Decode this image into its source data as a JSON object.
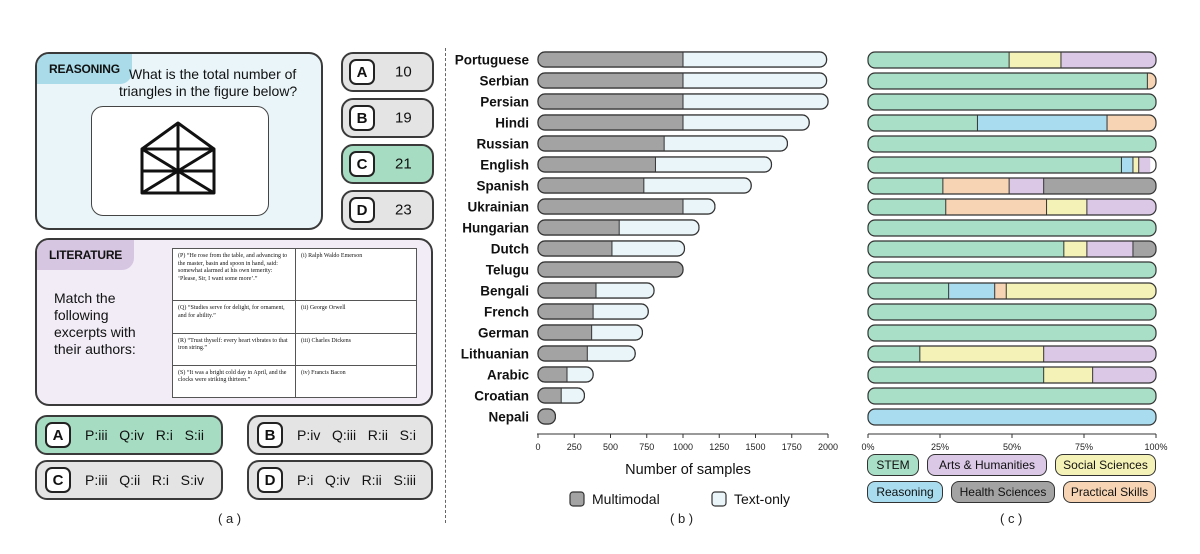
{
  "panel_a": {
    "label": "( a )",
    "reasoning": {
      "tag": "REASONING",
      "question_line1": "What is the total number of",
      "question_line2": "triangles  in the figure below?",
      "figure_icon": "house-triangles-figure",
      "options": [
        {
          "key": "A",
          "value": "10",
          "correct": false
        },
        {
          "key": "B",
          "value": "19",
          "correct": false
        },
        {
          "key": "C",
          "value": "21",
          "correct": true
        },
        {
          "key": "D",
          "value": "23",
          "correct": false
        }
      ]
    },
    "literature": {
      "tag": "LITERATURE",
      "prompt_lines": [
        "Match the",
        "following",
        "excerpts with",
        "their authors:"
      ],
      "rows": [
        {
          "excerpt": "(P) “He rose from the table, and advancing to the master, basin and spoon in hand, said: somewhat alarmed at his own temerity: ‘Please, Sir, I want some more’.”",
          "author": "(i) Ralph Waldo Emerson"
        },
        {
          "excerpt": "(Q) “Studies serve for delight, for ornament, and for ability.”",
          "author": "(ii) George Orwell"
        },
        {
          "excerpt": "(R) “Trust thyself: every heart vibrates to that iron string.”",
          "author": "(iii) Charles Dickens"
        },
        {
          "excerpt": "(S) “It was a bright cold day in April, and the clocks were striking thirteen.”",
          "author": "(iv) Francis Bacon"
        }
      ],
      "options": [
        {
          "key": "A",
          "value": "P:iii   Q:iv   R:i   S:ii",
          "correct": true
        },
        {
          "key": "B",
          "value": "P:iv   Q:iii   R:ii   S:i",
          "correct": false
        },
        {
          "key": "C",
          "value": "P:iii   Q:ii   R:i   S:iv",
          "correct": false
        },
        {
          "key": "D",
          "value": "P:i   Q:iv   R:ii   S:iii",
          "correct": false
        }
      ]
    }
  },
  "colors": {
    "reasoning_bg": "#e9f5f9",
    "reasoning_tag": "#a9dbe9",
    "literature_bg": "#f1ecf6",
    "literature_tag": "#d7c6e2",
    "correct_option": "#a6dcc2",
    "option_bg": "#e4e4e4",
    "multimodal": "#a3a3a3",
    "text_only": "#eaf5f9",
    "stem": "#a9dfc6",
    "arts": "#dac8e6",
    "social": "#f5f2b7",
    "reasoning_cat": "#a8dcee",
    "health": "#a3a3a3",
    "practical": "#f7d5b4"
  },
  "chart_data": [
    {
      "type": "bar",
      "orientation": "horizontal",
      "stacked": true,
      "panel_label": "( b )",
      "xlabel": "Number of samples",
      "xlim": [
        0,
        2000
      ],
      "xticks": [
        0,
        250,
        500,
        750,
        1000,
        1250,
        1500,
        1750,
        2000
      ],
      "categories": [
        "Portuguese",
        "Serbian",
        "Persian",
        "Hindi",
        "Russian",
        "English",
        "Spanish",
        "Ukrainian",
        "Hungarian",
        "Dutch",
        "Telugu",
        "Bengali",
        "French",
        "German",
        "Lithuanian",
        "Arabic",
        "Croatian",
        "Nepali"
      ],
      "series": [
        {
          "name": "Multimodal",
          "values": [
            1000,
            1000,
            1000,
            1000,
            870,
            810,
            730,
            1000,
            560,
            510,
            1000,
            400,
            380,
            370,
            340,
            200,
            160,
            120
          ]
        },
        {
          "name": "Text-only",
          "values": [
            990,
            990,
            1000,
            870,
            850,
            800,
            740,
            220,
            550,
            500,
            0,
            400,
            380,
            350,
            330,
            180,
            160,
            0
          ]
        }
      ],
      "legend": [
        "Multimodal",
        "Text-only"
      ]
    },
    {
      "type": "bar",
      "orientation": "horizontal",
      "stacked": true,
      "normalized": true,
      "panel_label": "( c )",
      "xlim": [
        0,
        100
      ],
      "xticks": [
        "0%",
        "25%",
        "50%",
        "75%",
        "100%"
      ],
      "categories": [
        "Portuguese",
        "Serbian",
        "Persian",
        "Hindi",
        "Russian",
        "English",
        "Spanish",
        "Ukrainian",
        "Hungarian",
        "Dutch",
        "Telugu",
        "Bengali",
        "French",
        "German",
        "Lithuanian",
        "Arabic",
        "Croatian",
        "Nepali"
      ],
      "series": [
        {
          "name": "STEM",
          "values": [
            49,
            97,
            100,
            38,
            100,
            88,
            26,
            27,
            100,
            68,
            100,
            28,
            100,
            100,
            18,
            61,
            100,
            0
          ]
        },
        {
          "name": "Reasoning",
          "values": [
            0,
            0,
            0,
            45,
            0,
            4,
            0,
            0,
            0,
            0,
            0,
            16,
            0,
            0,
            0,
            0,
            0,
            100
          ]
        },
        {
          "name": "Practical Skills",
          "values": [
            0,
            3,
            0,
            17,
            0,
            0,
            23,
            35,
            0,
            0,
            0,
            4,
            0,
            0,
            0,
            0,
            0,
            0
          ]
        },
        {
          "name": "Social Sciences",
          "values": [
            18,
            0,
            0,
            0,
            0,
            2,
            0,
            14,
            0,
            8,
            0,
            52,
            0,
            0,
            43,
            17,
            0,
            0
          ]
        },
        {
          "name": "Arts & Humanities",
          "values": [
            33,
            0,
            0,
            0,
            0,
            4,
            12,
            24,
            0,
            16,
            0,
            0,
            0,
            0,
            39,
            22,
            0,
            0
          ]
        },
        {
          "name": "Health Sciences",
          "values": [
            0,
            0,
            0,
            0,
            0,
            0,
            39,
            0,
            0,
            8,
            0,
            0,
            0,
            0,
            0,
            0,
            0,
            0
          ]
        }
      ],
      "legend": [
        "STEM",
        "Arts & Humanities",
        "Social Sciences",
        "Reasoning",
        "Health Sciences",
        "Practical Skills"
      ]
    }
  ]
}
